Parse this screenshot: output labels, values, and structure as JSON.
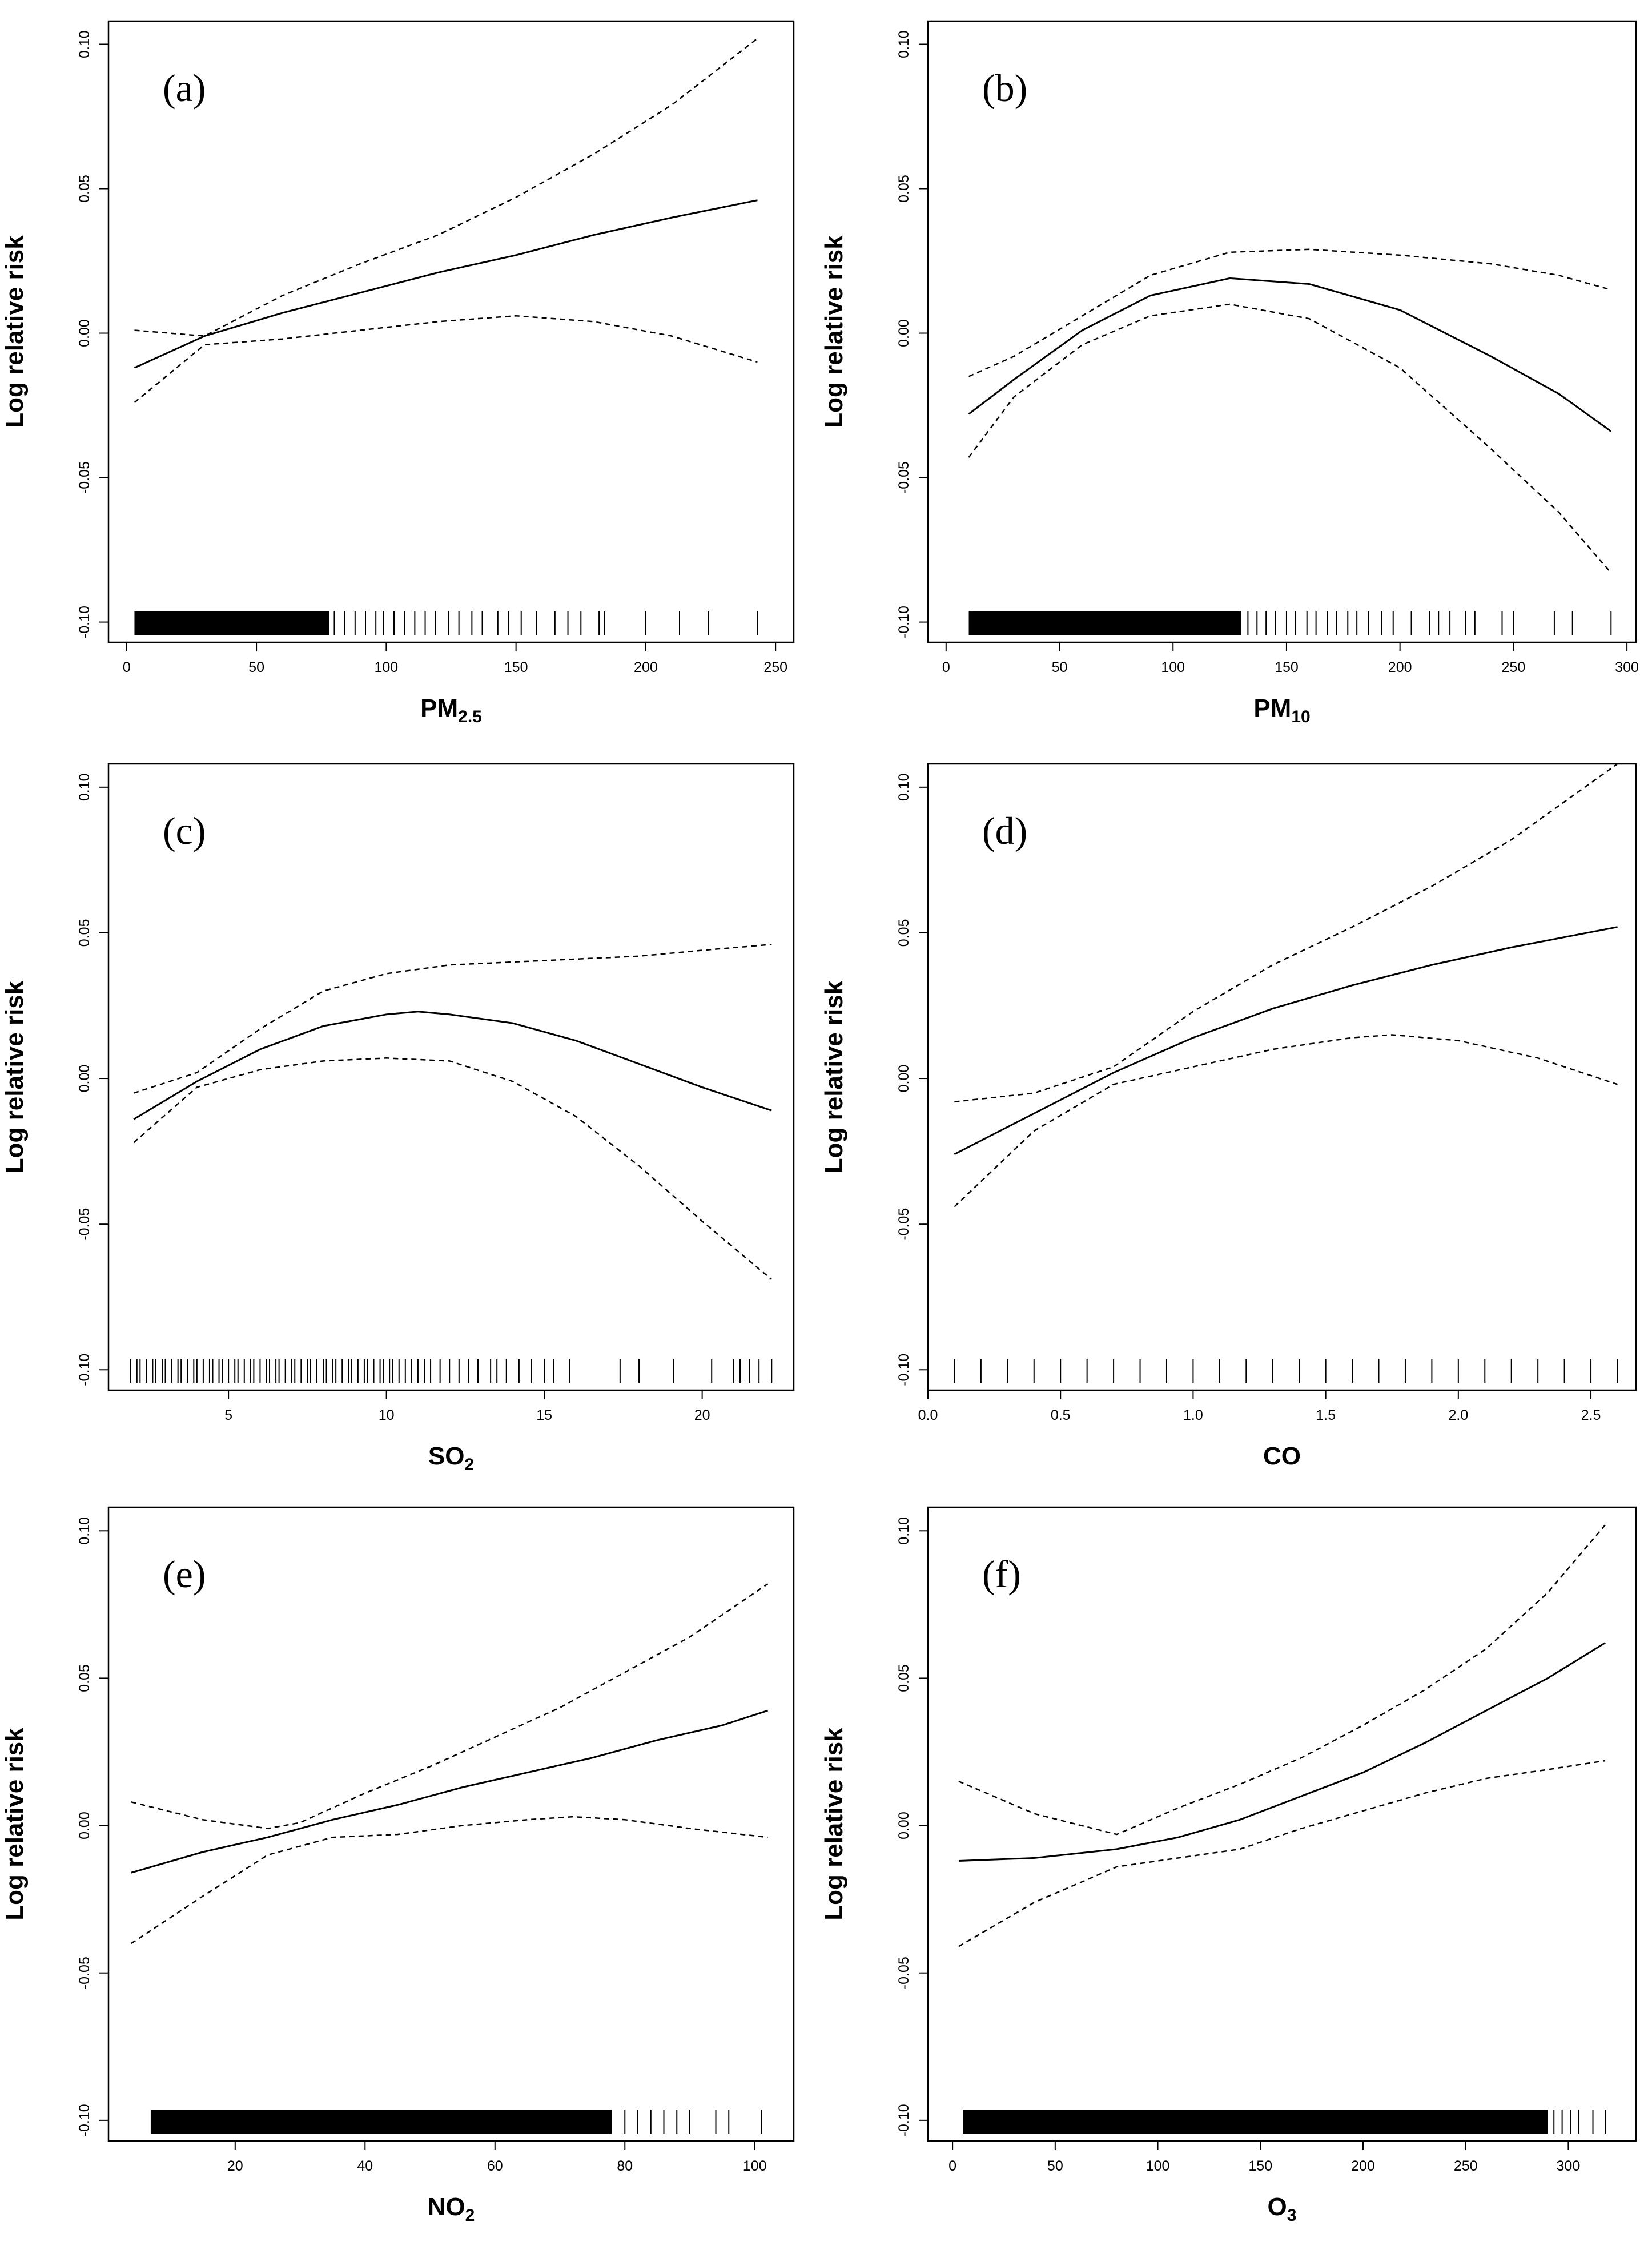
{
  "chart_data": [
    {
      "type": "line",
      "panel": "(a)",
      "xlabel": "PM",
      "xlabel_sub": "2.5",
      "ylabel": "Log relative risk",
      "xlim": [
        -7,
        257
      ],
      "ylim": [
        -0.107,
        0.108
      ],
      "xticks": [
        0,
        50,
        100,
        150,
        200,
        250
      ],
      "xtick_labels": [
        "0",
        "50",
        "100",
        "150",
        "200",
        "250"
      ],
      "yticks": [
        -0.1,
        -0.05,
        0.0,
        0.05,
        0.1
      ],
      "ytick_labels": [
        "-0.10",
        "-0.05",
        "0.00",
        "0.05",
        "0.10"
      ],
      "series": [
        {
          "name": "estimate",
          "style": "solid",
          "x": [
            3,
            30,
            60,
            90,
            120,
            150,
            180,
            210,
            243
          ],
          "y": [
            -0.012,
            -0.001,
            0.007,
            0.014,
            0.021,
            0.027,
            0.034,
            0.04,
            0.046
          ]
        },
        {
          "name": "upper CI",
          "style": "dashed",
          "x": [
            3,
            30,
            60,
            90,
            120,
            150,
            180,
            210,
            243
          ],
          "y": [
            0.001,
            -0.001,
            0.013,
            0.024,
            0.034,
            0.047,
            0.062,
            0.079,
            0.102
          ]
        },
        {
          "name": "lower CI",
          "style": "dashed",
          "x": [
            3,
            30,
            60,
            90,
            120,
            150,
            180,
            210,
            243
          ],
          "y": [
            -0.024,
            -0.004,
            -0.002,
            0.001,
            0.004,
            0.006,
            0.004,
            -0.001,
            -0.01
          ]
        }
      ],
      "rug": {
        "dense": [
          3,
          78
        ],
        "sparse": [
          80,
          84,
          88,
          92,
          96,
          99,
          103,
          107,
          111,
          115,
          119,
          124,
          128,
          133,
          137,
          143,
          147,
          152,
          158,
          165,
          170,
          175,
          182,
          184,
          200,
          213,
          224,
          243
        ]
      }
    },
    {
      "type": "line",
      "panel": "(b)",
      "xlabel": "PM",
      "xlabel_sub": "10",
      "ylabel": "Log relative risk",
      "xlim": [
        -8,
        304
      ],
      "ylim": [
        -0.107,
        0.108
      ],
      "xticks": [
        0,
        50,
        100,
        150,
        200,
        250,
        300
      ],
      "xtick_labels": [
        "0",
        "50",
        "100",
        "150",
        "200",
        "250",
        "300"
      ],
      "yticks": [
        -0.1,
        -0.05,
        0.0,
        0.05,
        0.1
      ],
      "ytick_labels": [
        "-0.10",
        "-0.05",
        "0.00",
        "0.05",
        "0.10"
      ],
      "series": [
        {
          "name": "estimate",
          "style": "solid",
          "x": [
            10,
            30,
            60,
            90,
            125,
            160,
            200,
            240,
            270,
            293
          ],
          "y": [
            -0.028,
            -0.016,
            0.001,
            0.013,
            0.019,
            0.017,
            0.008,
            -0.008,
            -0.021,
            -0.034
          ]
        },
        {
          "name": "upper CI",
          "style": "dashed",
          "x": [
            10,
            30,
            60,
            90,
            125,
            160,
            200,
            240,
            270,
            293
          ],
          "y": [
            -0.015,
            -0.008,
            0.006,
            0.02,
            0.028,
            0.029,
            0.027,
            0.024,
            0.02,
            0.015
          ]
        },
        {
          "name": "lower CI",
          "style": "dashed",
          "x": [
            10,
            30,
            60,
            90,
            125,
            160,
            200,
            240,
            270,
            293
          ],
          "y": [
            -0.043,
            -0.022,
            -0.004,
            0.006,
            0.01,
            0.005,
            -0.012,
            -0.04,
            -0.062,
            -0.083
          ]
        }
      ],
      "rug": {
        "dense": [
          10,
          130
        ],
        "sparse": [
          133,
          137,
          141,
          145,
          150,
          154,
          159,
          163,
          168,
          172,
          177,
          181,
          186,
          192,
          197,
          205,
          213,
          217,
          222,
          229,
          233,
          245,
          250,
          268,
          276,
          293
        ]
      }
    },
    {
      "type": "line",
      "panel": "(c)",
      "xlabel": "SO",
      "xlabel_sub": "2",
      "ylabel": "Log relative risk",
      "xlim": [
        1.2,
        22.9
      ],
      "ylim": [
        -0.107,
        0.108
      ],
      "xticks": [
        5,
        10,
        15,
        20
      ],
      "xtick_labels": [
        "5",
        "10",
        "15",
        "20"
      ],
      "yticks": [
        -0.1,
        -0.05,
        0.0,
        0.05,
        0.1
      ],
      "ytick_labels": [
        "-0.10",
        "-0.05",
        "0.00",
        "0.05",
        "0.10"
      ],
      "series": [
        {
          "name": "estimate",
          "style": "solid",
          "x": [
            2,
            4,
            6,
            8,
            10,
            11,
            12,
            14,
            16,
            18,
            20,
            22.2
          ],
          "y": [
            -0.014,
            -0.001,
            0.01,
            0.018,
            0.022,
            0.023,
            0.022,
            0.019,
            0.013,
            0.005,
            -0.003,
            -0.011
          ]
        },
        {
          "name": "upper CI",
          "style": "dashed",
          "x": [
            2,
            4,
            6,
            8,
            10,
            12,
            14,
            16,
            18,
            20,
            22.2
          ],
          "y": [
            -0.005,
            0.002,
            0.017,
            0.03,
            0.036,
            0.039,
            0.04,
            0.041,
            0.042,
            0.044,
            0.046
          ]
        },
        {
          "name": "lower CI",
          "style": "dashed",
          "x": [
            2,
            4,
            6,
            8,
            10,
            12,
            14,
            16,
            18,
            20,
            22.2
          ],
          "y": [
            -0.022,
            -0.003,
            0.003,
            0.006,
            0.007,
            0.006,
            -0.001,
            -0.013,
            -0.03,
            -0.049,
            -0.069
          ]
        }
      ],
      "rug": {
        "dense": [],
        "sparse": [
          1.9,
          2.1,
          2.2,
          2.4,
          2.6,
          2.7,
          2.9,
          3.0,
          3.2,
          3.4,
          3.5,
          3.7,
          3.9,
          4.0,
          4.2,
          4.4,
          4.5,
          4.7,
          4.8,
          5.0,
          5.2,
          5.3,
          5.5,
          5.7,
          5.8,
          6.0,
          6.2,
          6.3,
          6.5,
          6.6,
          6.8,
          7.0,
          7.1,
          7.3,
          7.5,
          7.6,
          7.8,
          8.0,
          8.1,
          8.3,
          8.4,
          8.6,
          8.8,
          8.9,
          9.1,
          9.3,
          9.4,
          9.6,
          9.8,
          9.9,
          10.1,
          10.2,
          10.4,
          10.6,
          10.8,
          11.0,
          11.2,
          11.4,
          11.7,
          12.0,
          12.3,
          12.6,
          12.9,
          13.3,
          13.5,
          13.8,
          14.2,
          14.6,
          15.0,
          15.3,
          15.8,
          17.4,
          18.0,
          19.1,
          20.3,
          21.0,
          21.2,
          21.5,
          21.8,
          22.2
        ]
      }
    },
    {
      "type": "line",
      "panel": "(d)",
      "xlabel": "CO",
      "xlabel_sub": "",
      "ylabel": "Log relative risk",
      "xlim": [
        0,
        2.67
      ],
      "ylim": [
        -0.107,
        0.108
      ],
      "xticks": [
        0.0,
        0.5,
        1.0,
        1.5,
        2.0,
        2.5
      ],
      "xtick_labels": [
        "0.0",
        "0.5",
        "1.0",
        "1.5",
        "2.0",
        "2.5"
      ],
      "yticks": [
        -0.1,
        -0.05,
        0.0,
        0.05,
        0.1
      ],
      "ytick_labels": [
        "-0.10",
        "-0.05",
        "0.00",
        "0.05",
        "0.10"
      ],
      "series": [
        {
          "name": "estimate",
          "style": "solid",
          "x": [
            0.1,
            0.4,
            0.7,
            1.0,
            1.3,
            1.6,
            1.9,
            2.2,
            2.6
          ],
          "y": [
            -0.026,
            -0.012,
            0.002,
            0.014,
            0.024,
            0.032,
            0.039,
            0.045,
            0.052
          ]
        },
        {
          "name": "upper CI",
          "style": "dashed",
          "x": [
            0.1,
            0.4,
            0.7,
            1.0,
            1.3,
            1.6,
            1.9,
            2.2,
            2.6
          ],
          "y": [
            -0.008,
            -0.005,
            0.004,
            0.023,
            0.039,
            0.052,
            0.066,
            0.082,
            0.108
          ]
        },
        {
          "name": "lower CI",
          "style": "dashed",
          "x": [
            0.1,
            0.4,
            0.7,
            1.0,
            1.3,
            1.6,
            1.75,
            2.0,
            2.3,
            2.6
          ],
          "y": [
            -0.044,
            -0.018,
            -0.002,
            0.004,
            0.01,
            0.014,
            0.015,
            0.013,
            0.007,
            -0.002
          ]
        }
      ],
      "rug": {
        "dense": [],
        "sparse": [
          0.1,
          0.2,
          0.3,
          0.4,
          0.5,
          0.6,
          0.7,
          0.8,
          0.9,
          1.0,
          1.1,
          1.2,
          1.3,
          1.4,
          1.5,
          1.6,
          1.7,
          1.8,
          1.9,
          2.0,
          2.1,
          2.2,
          2.3,
          2.4,
          2.5,
          2.6
        ]
      }
    },
    {
      "type": "line",
      "panel": "(e)",
      "xlabel": "NO",
      "xlabel_sub": "2",
      "ylabel": "Log relative risk",
      "xlim": [
        0.5,
        106
      ],
      "ylim": [
        -0.107,
        0.108
      ],
      "xticks": [
        20,
        40,
        60,
        80,
        100
      ],
      "xtick_labels": [
        "20",
        "40",
        "60",
        "80",
        "100"
      ],
      "yticks": [
        -0.1,
        -0.05,
        0.0,
        0.05,
        0.1
      ],
      "ytick_labels": [
        "-0.10",
        "-0.05",
        "0.00",
        "0.05",
        "0.10"
      ],
      "series": [
        {
          "name": "estimate",
          "style": "solid",
          "x": [
            4,
            15,
            25,
            35,
            45,
            55,
            65,
            75,
            85,
            95,
            102
          ],
          "y": [
            -0.016,
            -0.009,
            -0.004,
            0.002,
            0.007,
            0.013,
            0.018,
            0.023,
            0.029,
            0.034,
            0.039
          ]
        },
        {
          "name": "upper CI",
          "style": "dashed",
          "x": [
            4,
            15,
            25,
            30,
            40,
            50,
            60,
            70,
            80,
            90,
            102
          ],
          "y": [
            0.008,
            0.002,
            -0.001,
            0.001,
            0.011,
            0.02,
            0.03,
            0.04,
            0.052,
            0.064,
            0.082
          ]
        },
        {
          "name": "lower CI",
          "style": "dashed",
          "x": [
            4,
            15,
            25,
            35,
            45,
            55,
            65,
            72,
            80,
            90,
            102
          ],
          "y": [
            -0.04,
            -0.024,
            -0.01,
            -0.004,
            -0.003,
            0.0,
            0.002,
            0.003,
            0.002,
            -0.001,
            -0.004
          ]
        }
      ],
      "rug": {
        "dense": [
          7,
          78
        ],
        "sparse": [
          80,
          82,
          84,
          86,
          88,
          90,
          94,
          96,
          101
        ]
      }
    },
    {
      "type": "line",
      "panel": "(f)",
      "xlabel": "O",
      "xlabel_sub": "3",
      "ylabel": "Log relative risk",
      "xlim": [
        -12,
        333
      ],
      "ylim": [
        -0.107,
        0.108
      ],
      "xticks": [
        0,
        50,
        100,
        150,
        200,
        250,
        300
      ],
      "xtick_labels": [
        "0",
        "50",
        "100",
        "150",
        "200",
        "250",
        "300"
      ],
      "yticks": [
        -0.1,
        -0.05,
        0.0,
        0.05,
        0.1
      ],
      "ytick_labels": [
        "-0.10",
        "-0.05",
        "0.00",
        "0.05",
        "0.10"
      ],
      "series": [
        {
          "name": "estimate",
          "style": "solid",
          "x": [
            3,
            40,
            80,
            110,
            140,
            170,
            200,
            230,
            260,
            290,
            318
          ],
          "y": [
            -0.012,
            -0.011,
            -0.008,
            -0.004,
            0.002,
            0.01,
            0.018,
            0.028,
            0.039,
            0.05,
            0.062
          ]
        },
        {
          "name": "upper CI",
          "style": "dashed",
          "x": [
            3,
            40,
            80,
            110,
            140,
            170,
            200,
            230,
            260,
            290,
            318
          ],
          "y": [
            0.015,
            0.004,
            -0.003,
            0.006,
            0.014,
            0.023,
            0.034,
            0.046,
            0.06,
            0.079,
            0.102
          ]
        },
        {
          "name": "lower CI",
          "style": "dashed",
          "x": [
            3,
            40,
            80,
            110,
            140,
            170,
            200,
            230,
            260,
            290,
            318
          ],
          "y": [
            -0.041,
            -0.026,
            -0.014,
            -0.011,
            -0.008,
            -0.001,
            0.005,
            0.011,
            0.016,
            0.019,
            0.022
          ]
        }
      ],
      "rug": {
        "dense": [
          5,
          290
        ],
        "sparse": [
          293,
          297,
          301,
          305,
          312,
          318
        ]
      }
    }
  ]
}
